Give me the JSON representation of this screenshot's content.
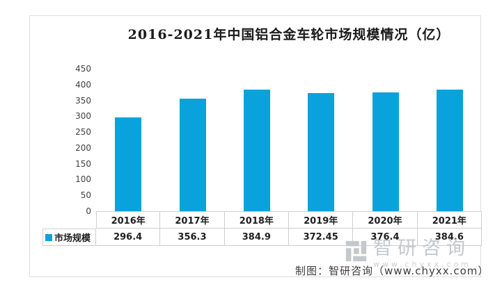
{
  "chart_data": {
    "type": "bar",
    "title": "2016-2021年中国铝合金车轮市场规模情况（亿）",
    "categories": [
      "2016年",
      "2017年",
      "2018年",
      "2019年",
      "2020年",
      "2021年"
    ],
    "series": [
      {
        "name": "市场规模",
        "values": [
          296.4,
          356.3,
          384.9,
          372.45,
          376.4,
          384.6
        ]
      }
    ],
    "value_labels": [
      "296.4",
      "356.3",
      "384.9",
      "372.45",
      "376.4",
      "384.6"
    ],
    "xlabel": "",
    "ylabel": "",
    "ylim": [
      0,
      450
    ],
    "ytick_step": 50,
    "grid": false,
    "legend_position": "bottom-left-table"
  },
  "colors": {
    "bar": "#0aa2dc",
    "table_border": "#cfcfcf",
    "box_border": "#dcdcdc",
    "watermark_gray": "#c5c8ca"
  },
  "watermark": {
    "logo": "chyxx-logo",
    "brand": "智研咨询",
    "url": "www.chyxx.com"
  },
  "footer": {
    "credit": "制图：智研咨询（www.chyxx.com）"
  }
}
